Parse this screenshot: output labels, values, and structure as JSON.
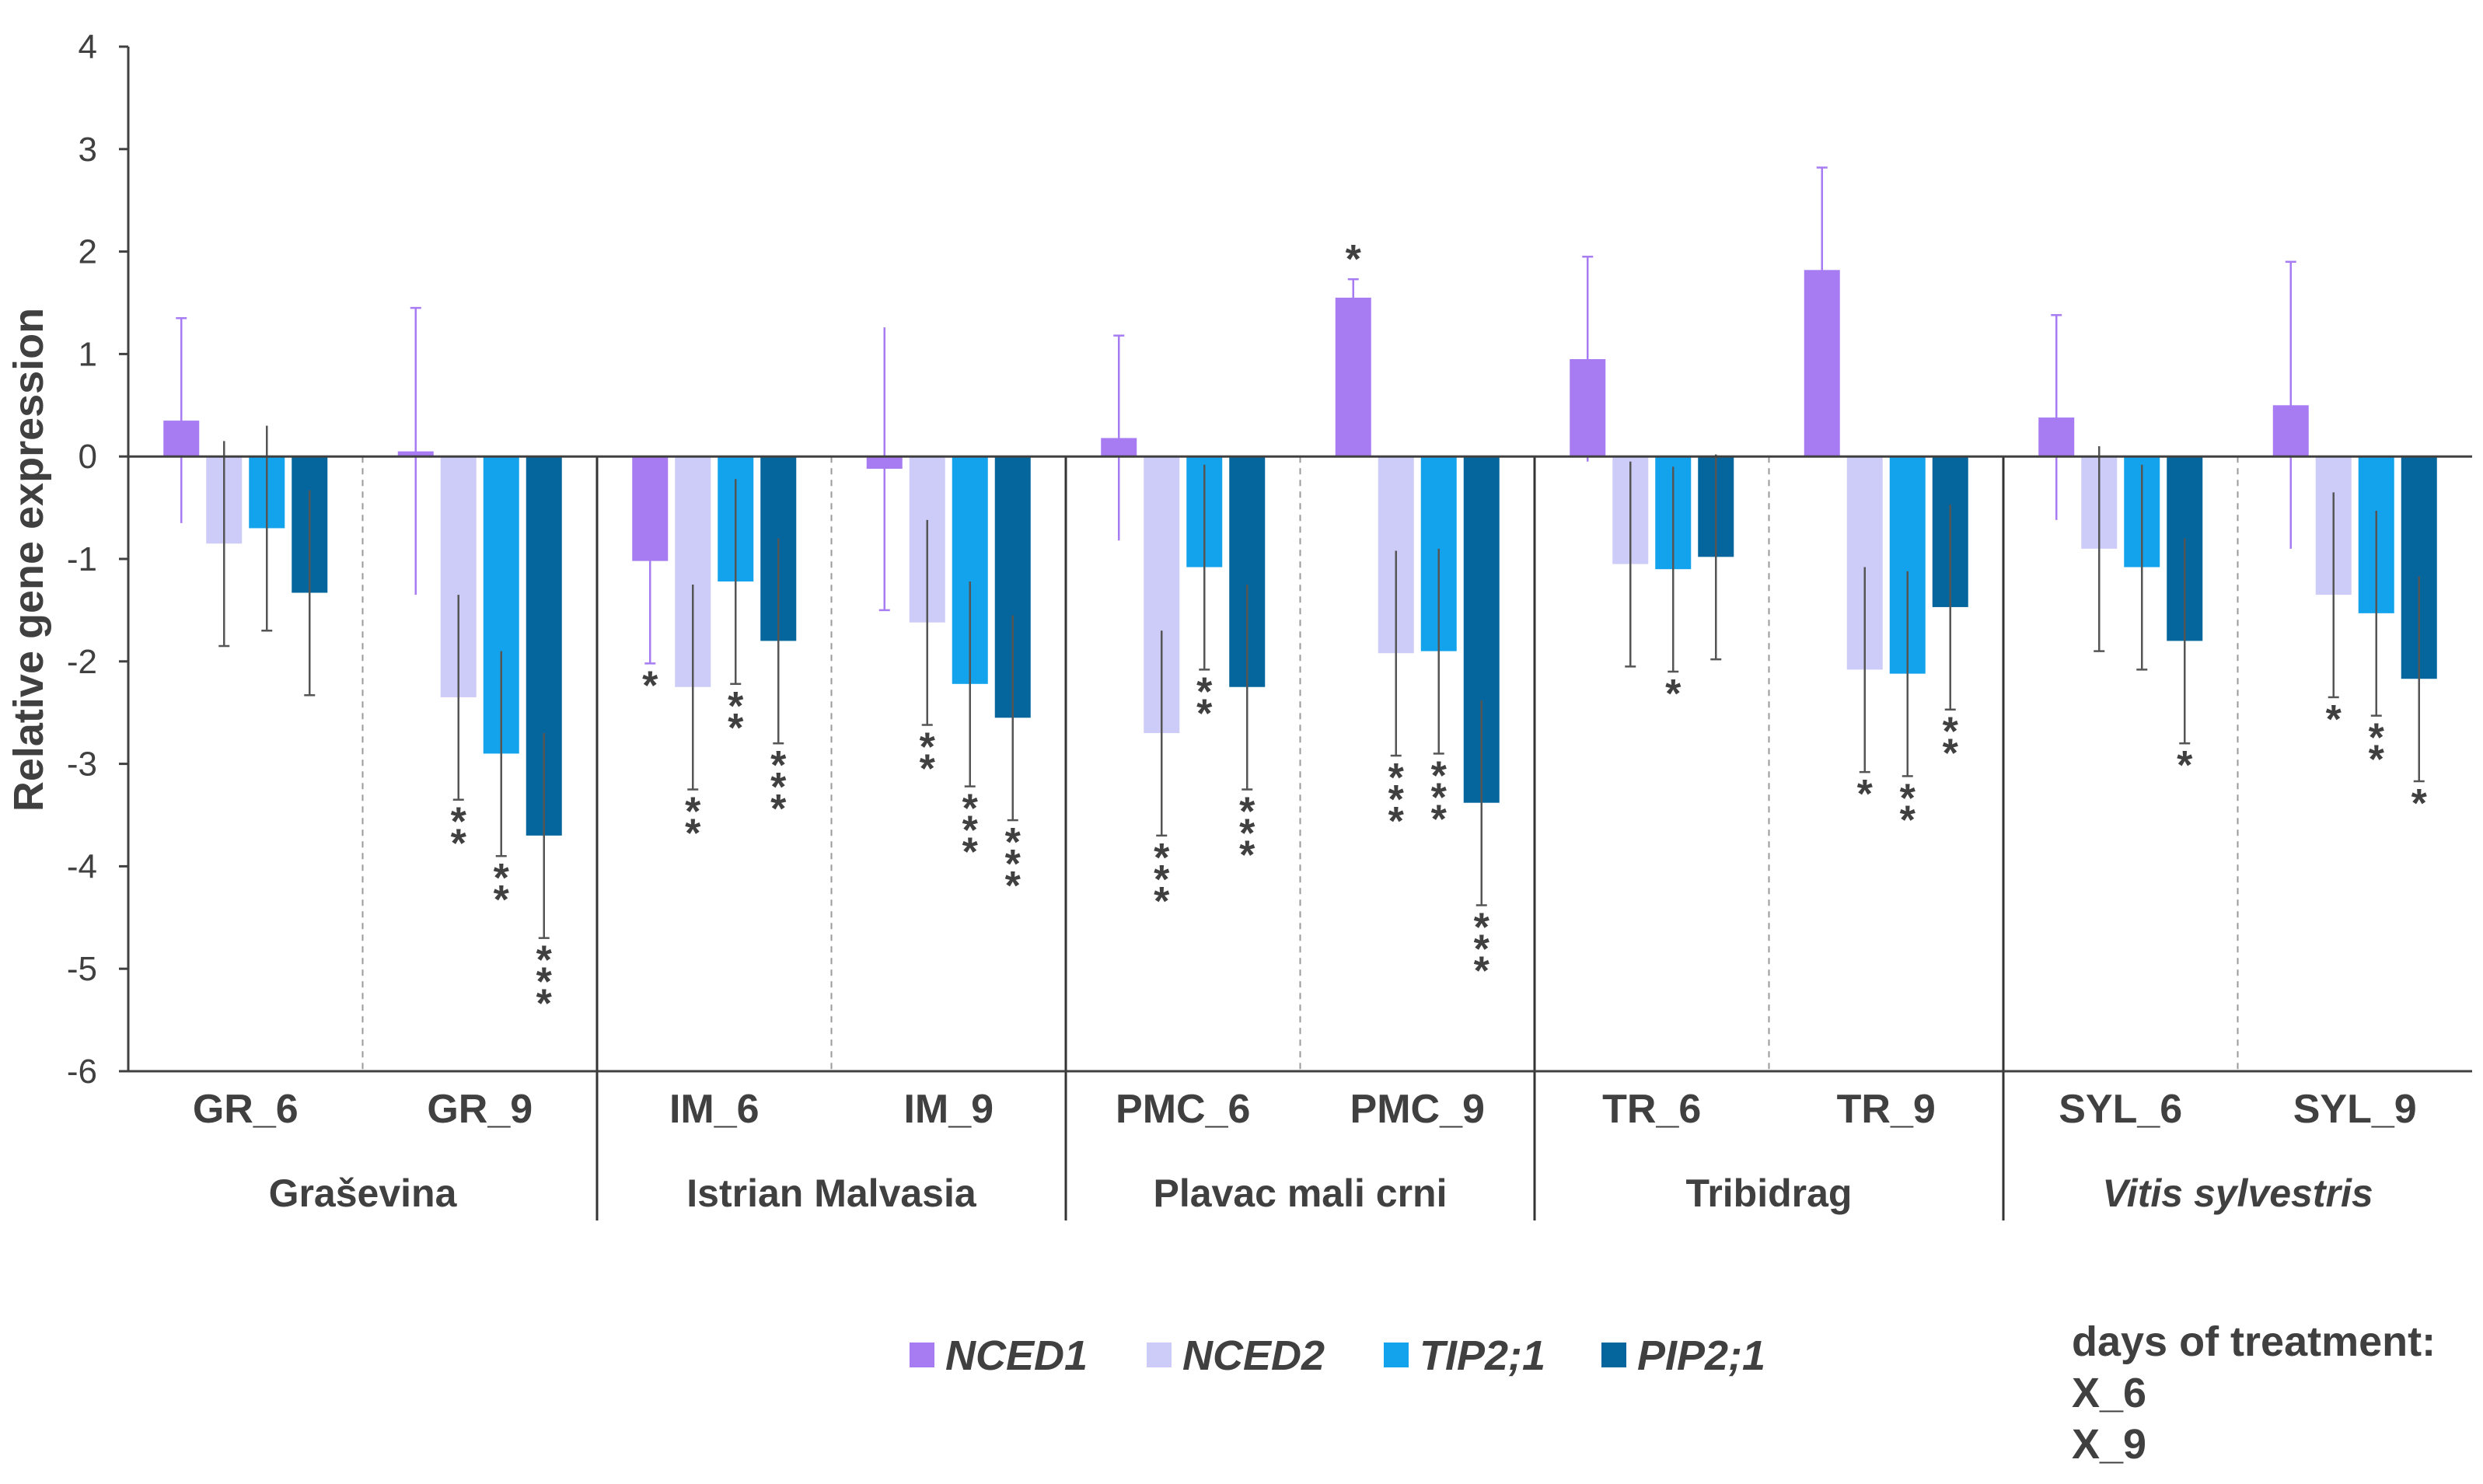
{
  "chart_data": {
    "type": "bar",
    "ylabel": "Relative gene expression",
    "xlabel": "",
    "ylim": [
      -6,
      4
    ],
    "yticks": [
      4,
      3,
      2,
      1,
      0,
      -1,
      -2,
      -3,
      -4,
      -5,
      -6
    ],
    "categories": [
      "GR_6",
      "GR_9",
      "IM_6",
      "IM_9",
      "PMC_6",
      "PMC_9",
      "TR_6",
      "TR_9",
      "SYL_6",
      "SYL_9"
    ],
    "groups": [
      {
        "label": "Graševina",
        "italic": false
      },
      {
        "label": "Istrian Malvasia",
        "italic": false
      },
      {
        "label": "Plavac mali crni",
        "italic": false
      },
      {
        "label": "Tribidrag",
        "italic": false
      },
      {
        "label": "Vitis sylvestris",
        "italic": true
      }
    ],
    "series": [
      {
        "name": "NCED1",
        "color": "#a77cf3",
        "values": [
          0.35,
          0.05,
          -1.02,
          -0.12,
          0.18,
          1.55,
          0.95,
          1.82,
          0.38,
          0.5
        ],
        "errors": [
          1.0,
          1.4,
          1.0,
          1.38,
          1.0,
          0.18,
          1.0,
          1.0,
          1.0,
          1.4
        ],
        "stars": [
          "",
          "",
          "*",
          "",
          "",
          "*",
          "",
          "",
          "",
          ""
        ]
      },
      {
        "name": "NCED2",
        "color": "#cdcbf7",
        "values": [
          -0.85,
          -2.35,
          -2.25,
          -1.62,
          -2.7,
          -1.92,
          -1.05,
          -2.08,
          -0.9,
          -1.35
        ],
        "errors": [
          1.0,
          1.0,
          1.0,
          1.0,
          1.0,
          1.0,
          1.0,
          1.0,
          1.0,
          1.0
        ],
        "stars": [
          "",
          "**",
          "**",
          "**",
          "***",
          "***",
          "",
          "*",
          "",
          "*"
        ]
      },
      {
        "name": "TIP2;1",
        "color": "#13a3ec",
        "values": [
          -0.7,
          -2.9,
          -1.22,
          -2.22,
          -1.08,
          -1.9,
          -1.1,
          -2.12,
          -1.08,
          -1.53
        ],
        "errors": [
          1.0,
          1.0,
          1.0,
          1.0,
          1.0,
          1.0,
          1.0,
          1.0,
          1.0,
          1.0
        ],
        "stars": [
          "",
          "**",
          "**",
          "***",
          "**",
          "***",
          "*",
          "**",
          "",
          "**"
        ]
      },
      {
        "name": "PIP2;1",
        "color": "#05669d",
        "values": [
          -1.33,
          -3.7,
          -1.8,
          -2.55,
          -2.25,
          -3.38,
          -0.98,
          -1.47,
          -1.8,
          -2.17
        ],
        "errors": [
          1.0,
          1.0,
          1.0,
          1.0,
          1.0,
          1.0,
          1.0,
          1.0,
          1.0,
          1.0
        ],
        "stars": [
          "",
          "***",
          "***",
          "***",
          "***",
          "***",
          "",
          "**",
          "*",
          "*"
        ]
      }
    ],
    "error_bar_colors": {
      "NCED1": "#a77cf3",
      "other": "#555555"
    },
    "axis_color": "#404040",
    "note": {
      "title": "days of treatment:",
      "lines": [
        "X_6",
        "X_9"
      ]
    },
    "legend_position": "bottom-center",
    "grid": false
  }
}
